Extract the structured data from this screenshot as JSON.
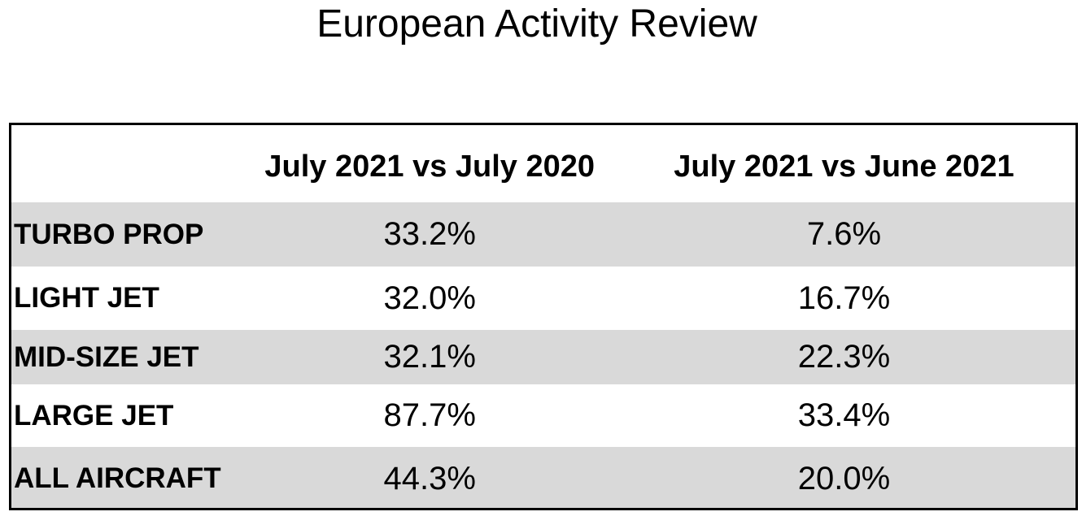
{
  "chart_data": {
    "type": "table",
    "title": "European Activity Review",
    "columns": [
      "",
      "July 2021 vs July 2020",
      "July 2021 vs June 2021"
    ],
    "rows": [
      {
        "label": "TURBO PROP",
        "values": [
          "33.2%",
          "7.6%"
        ]
      },
      {
        "label": "LIGHT JET",
        "values": [
          "32.0%",
          "16.7%"
        ]
      },
      {
        "label": "MID-SIZE JET",
        "values": [
          "32.1%",
          "22.3%"
        ]
      },
      {
        "label": "LARGE JET",
        "values": [
          "87.7%",
          "33.4%"
        ]
      },
      {
        "label": "ALL AIRCRAFT",
        "values": [
          "44.3%",
          "20.0%"
        ]
      }
    ],
    "series": [
      {
        "name": "July 2021 vs July 2020",
        "values": [
          33.2,
          32.0,
          32.1,
          87.7,
          44.3
        ]
      },
      {
        "name": "July 2021 vs June 2021",
        "values": [
          7.6,
          16.7,
          22.3,
          33.4,
          20.0
        ]
      }
    ],
    "categories": [
      "TURBO PROP",
      "LIGHT JET",
      "MID-SIZE JET",
      "LARGE JET",
      "ALL AIRCRAFT"
    ],
    "colors": {
      "shaded_row": "#d9d9d9",
      "plain_row": "#ffffff",
      "border": "#000000"
    }
  }
}
